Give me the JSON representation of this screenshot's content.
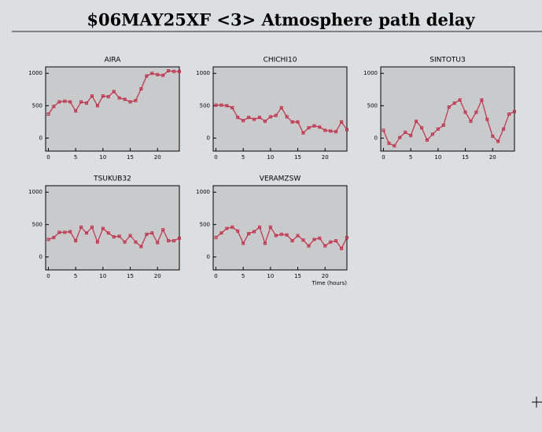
{
  "title": "$06MAY25XF <3>  Atmosphere path delay",
  "chart_data": [
    {
      "type": "line",
      "title": "AIRA",
      "color": "#c0304a",
      "x": [
        0,
        1,
        2,
        3,
        4,
        5,
        6,
        7,
        8,
        9,
        10,
        11,
        12,
        13,
        14,
        15,
        16,
        17,
        18,
        19,
        20,
        21,
        22,
        23,
        24
      ],
      "values": [
        370,
        490,
        560,
        570,
        560,
        420,
        560,
        540,
        650,
        500,
        650,
        640,
        720,
        620,
        600,
        560,
        580,
        760,
        960,
        1000,
        980,
        970,
        1040,
        1030,
        1030
      ],
      "xlim": [
        -0.5,
        24
      ],
      "xticks": [
        0,
        5,
        10,
        15,
        20
      ],
      "ylim": [
        -200,
        1100
      ],
      "yticks": [
        0,
        500,
        1000
      ]
    },
    {
      "type": "line",
      "title": "CHICHI10",
      "color": "#c0304a",
      "x": [
        0,
        1,
        2,
        3,
        4,
        5,
        6,
        7,
        8,
        9,
        10,
        11,
        12,
        13,
        14,
        15,
        16,
        17,
        18,
        19,
        20,
        21,
        22,
        23,
        24
      ],
      "values": [
        510,
        510,
        500,
        470,
        320,
        270,
        320,
        290,
        320,
        260,
        330,
        350,
        470,
        330,
        250,
        250,
        80,
        160,
        190,
        170,
        120,
        110,
        100,
        250,
        130
      ],
      "xlim": [
        -0.5,
        24
      ],
      "xticks": [
        0,
        5,
        10,
        15,
        20
      ],
      "ylim": [
        -200,
        1100
      ],
      "yticks": [
        0,
        500,
        1000
      ]
    },
    {
      "type": "line",
      "title": "SINTOTU3",
      "color": "#c0304a",
      "x": [
        0,
        1,
        2,
        3,
        4,
        5,
        6,
        7,
        8,
        9,
        10,
        11,
        12,
        13,
        14,
        15,
        16,
        17,
        18,
        19,
        20,
        21,
        22,
        23,
        24
      ],
      "values": [
        120,
        -80,
        -120,
        10,
        90,
        40,
        260,
        160,
        -30,
        60,
        140,
        200,
        480,
        540,
        590,
        400,
        260,
        400,
        590,
        290,
        30,
        -50,
        140,
        370,
        410
      ],
      "xlim": [
        -0.5,
        24
      ],
      "xticks": [
        0,
        5,
        10,
        15,
        20
      ],
      "ylim": [
        -200,
        1100
      ],
      "yticks": [
        0,
        500,
        1000
      ]
    },
    {
      "type": "line",
      "title": "TSUKUB32",
      "color": "#c0304a",
      "x": [
        0,
        1,
        2,
        3,
        4,
        5,
        6,
        7,
        8,
        9,
        10,
        11,
        12,
        13,
        14,
        15,
        16,
        17,
        18,
        19,
        20,
        21,
        22,
        23,
        24
      ],
      "values": [
        270,
        300,
        380,
        380,
        390,
        250,
        460,
        370,
        460,
        230,
        440,
        370,
        310,
        320,
        230,
        330,
        230,
        160,
        350,
        370,
        220,
        420,
        250,
        250,
        290
      ],
      "xlim": [
        -0.5,
        24
      ],
      "xticks": [
        0,
        5,
        10,
        15,
        20
      ],
      "ylim": [
        -200,
        1100
      ],
      "yticks": [
        0,
        500,
        1000
      ]
    },
    {
      "type": "line",
      "title": "VERAMZSW",
      "color": "#c0304a",
      "x_label": "Time (hours)",
      "x": [
        0,
        1,
        2,
        3,
        4,
        5,
        6,
        7,
        8,
        9,
        10,
        11,
        12,
        13,
        14,
        15,
        16,
        17,
        18,
        19,
        20,
        21,
        22,
        23,
        24
      ],
      "values": [
        300,
        370,
        440,
        460,
        400,
        210,
        360,
        390,
        460,
        210,
        460,
        330,
        350,
        340,
        250,
        330,
        260,
        170,
        270,
        290,
        170,
        230,
        250,
        130,
        300
      ],
      "xlim": [
        -0.5,
        24
      ],
      "xticks": [
        0,
        5,
        10,
        15,
        20
      ],
      "ylim": [
        -200,
        1100
      ],
      "yticks": [
        0,
        500,
        1000
      ]
    }
  ]
}
